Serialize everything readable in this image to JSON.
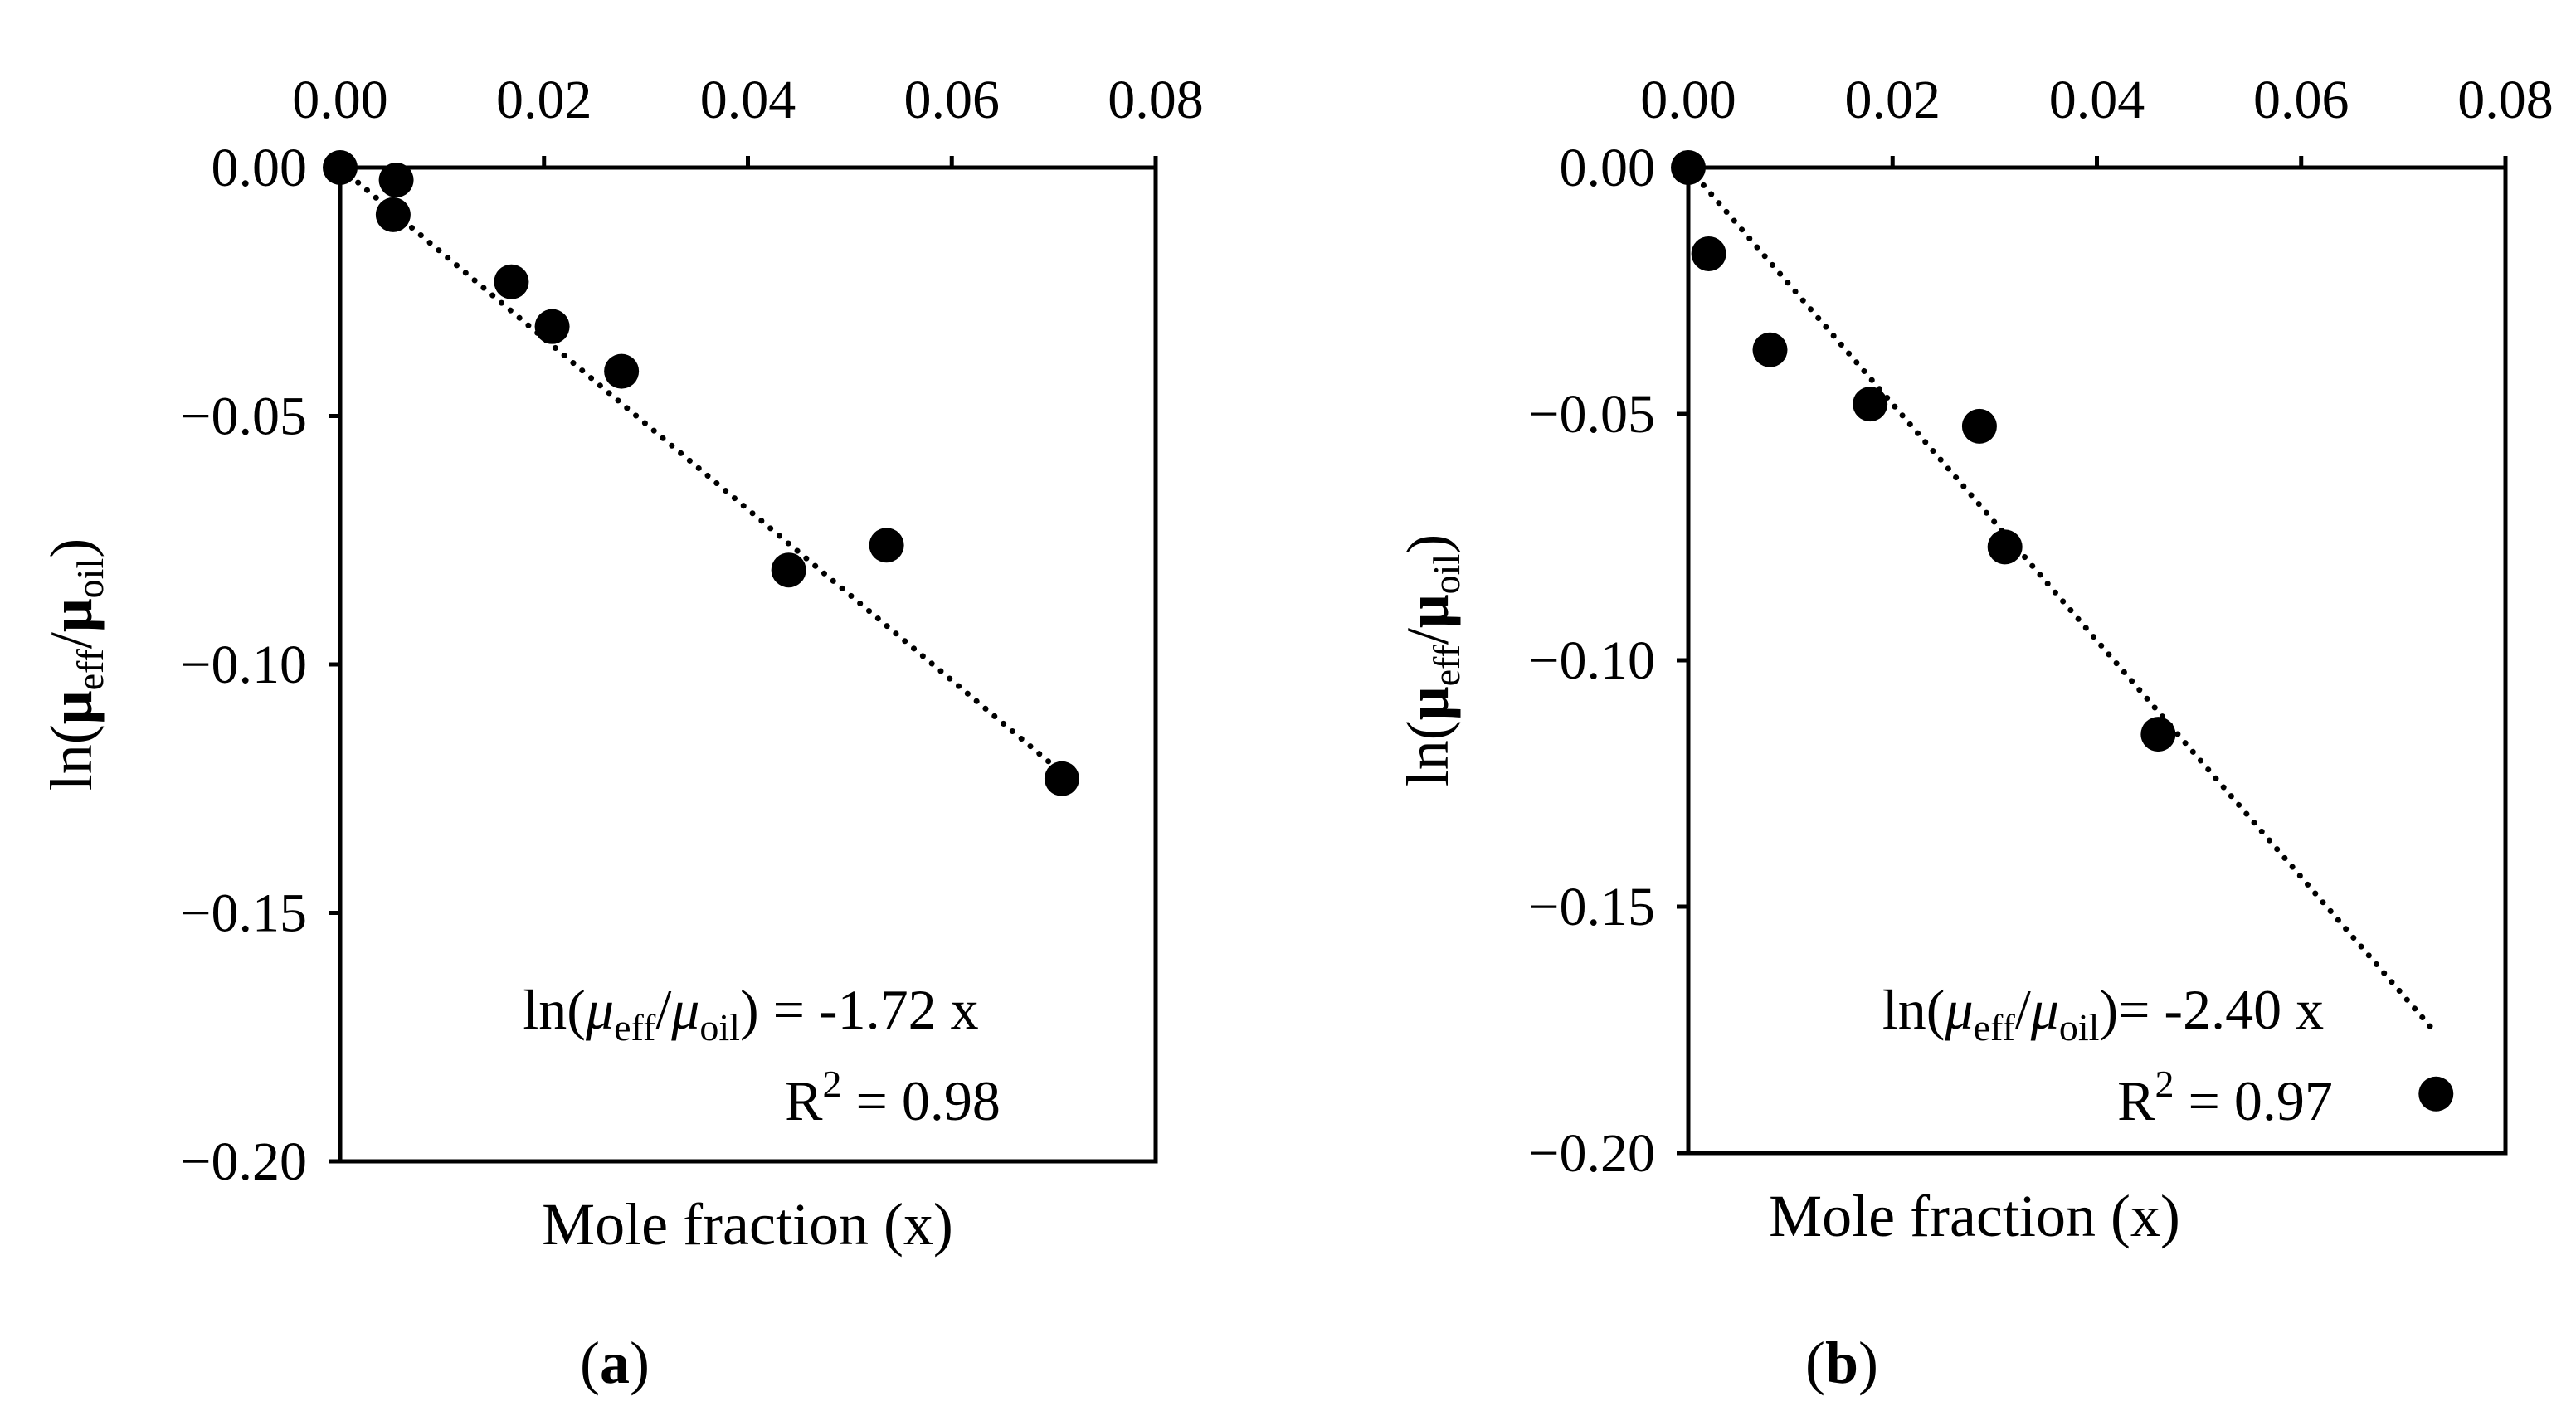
{
  "chart_data": [
    {
      "type": "scatter",
      "panel_label": "a",
      "xlabel": "Mole fraction (x)",
      "ylabel": {
        "base": "ln(",
        "mu1": "μ",
        "sub1": "eff",
        "slash": "/",
        "mu2": "μ",
        "sub2": "oil",
        "close": ")"
      },
      "xlim": [
        0,
        0.08
      ],
      "ylim": [
        -0.2,
        0
      ],
      "x_axis_position": "top",
      "xticks": [
        0.0,
        0.02,
        0.04,
        0.06,
        0.08
      ],
      "xtick_labels": [
        "0.00",
        "0.02",
        "0.04",
        "0.06",
        "0.08"
      ],
      "yticks": [
        0.0,
        -0.05,
        -0.1,
        -0.15,
        -0.2
      ],
      "ytick_labels": [
        "0.00",
        "−0.05",
        "−0.10",
        "−0.15",
        "−0.20"
      ],
      "points": {
        "x": [
          0.0,
          0.0055,
          0.0052,
          0.0168,
          0.0208,
          0.0276,
          0.044,
          0.0536,
          0.0708
        ],
        "y": [
          0.0,
          -0.0025,
          -0.0095,
          -0.023,
          -0.032,
          -0.041,
          -0.081,
          -0.076,
          -0.123
        ]
      },
      "fit": {
        "slope": -1.72,
        "x_range": [
          0.0,
          0.0708
        ],
        "style": "dotted"
      },
      "equation": {
        "prefix": "ln(",
        "mu1": "μ",
        "sub1": "eff",
        "slash": "/",
        "mu2": "μ",
        "sub2": "oil",
        "suffix": ") = -1.72 x"
      },
      "r2": {
        "label": "R",
        "sup": "2",
        "value": " = 0.98"
      },
      "colors": {
        "marker": "#000000",
        "line": "#000000"
      }
    },
    {
      "type": "scatter",
      "panel_label": "b",
      "xlabel": "Mole fraction (x)",
      "ylabel": {
        "base": "ln(",
        "mu1": "μ",
        "sub1": "eff",
        "slash": "/",
        "mu2": "μ",
        "sub2": "oil",
        "close": ")"
      },
      "xlim": [
        0,
        0.08
      ],
      "ylim": [
        -0.2,
        0
      ],
      "x_axis_position": "top",
      "xticks": [
        0.0,
        0.02,
        0.04,
        0.06,
        0.08
      ],
      "xtick_labels": [
        "0.00",
        "0.02",
        "0.04",
        "0.06",
        "0.08"
      ],
      "yticks": [
        0.0,
        -0.05,
        -0.1,
        -0.15,
        -0.2
      ],
      "ytick_labels": [
        "0.00",
        "−0.05",
        "−0.10",
        "−0.15",
        "−0.20"
      ],
      "points": {
        "x": [
          0.0,
          0.002,
          0.008,
          0.0178,
          0.0285,
          0.031,
          0.046,
          0.0732
        ],
        "y": [
          0.0,
          -0.0175,
          -0.037,
          -0.048,
          -0.0525,
          -0.077,
          -0.115,
          -0.188
        ]
      },
      "fit": {
        "slope": -2.4,
        "x_range": [
          0.0,
          0.0732
        ],
        "style": "dotted"
      },
      "equation": {
        "prefix": "ln(",
        "mu1": "μ",
        "sub1": "eff",
        "slash": "/",
        "mu2": "μ",
        "sub2": "oil",
        "suffix": ")= -2.40 x"
      },
      "r2": {
        "label": "R",
        "sup": "2",
        "value": " = 0.97"
      },
      "colors": {
        "marker": "#000000",
        "line": "#000000"
      }
    }
  ]
}
